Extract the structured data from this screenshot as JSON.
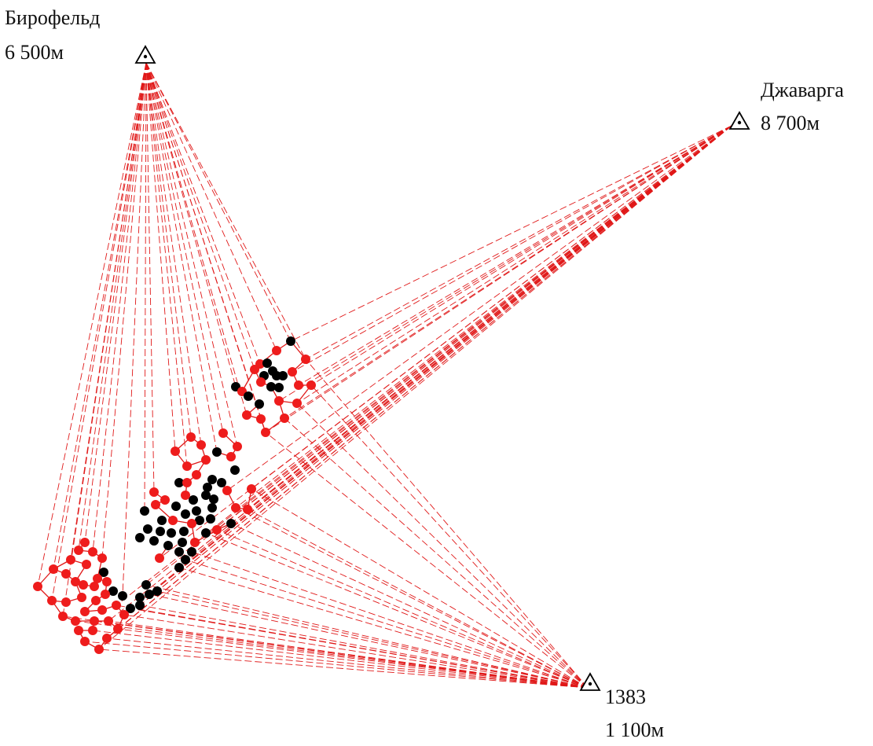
{
  "stations": [
    {
      "id": "birofeld",
      "name": "Бирофельд",
      "distance": "6 500м"
    },
    {
      "id": "dzhavarga",
      "name": "Джаварга",
      "distance": "8 700м"
    },
    {
      "id": "s1383",
      "name": "1383",
      "distance": "1 100м"
    }
  ],
  "colors": {
    "ray": "#e01818",
    "point_red": "#ee1c1c",
    "point_black": "#000000",
    "link": "#e01818",
    "station_marker": "#000000"
  },
  "icons": {
    "station": "triangle-station-icon"
  }
}
